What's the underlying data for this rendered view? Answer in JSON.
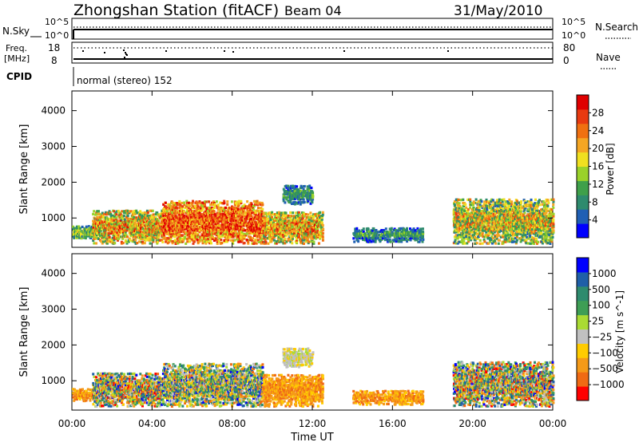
{
  "header": {
    "station": "Zhongshan Station (fitACF)",
    "beam": "Beam 04",
    "date": "31/May/2010"
  },
  "nsky_strip": {
    "left_label": "N.Sky",
    "right_label": "N.Search",
    "left_ticks": [
      "10^5",
      "10^0"
    ],
    "right_ticks": [
      "10^5",
      "10^0"
    ]
  },
  "freq_strip": {
    "left_label_line1": "Freq.",
    "left_label_line2": "[MHz]",
    "right_label": "Nave",
    "left_ticks": [
      "18",
      "8"
    ],
    "right_ticks": [
      "80",
      "0"
    ]
  },
  "cpid": {
    "label": "CPID",
    "text": "normal (stereo) 152"
  },
  "x_axis": {
    "title": "Time UT",
    "ticks": [
      "00:00",
      "04:00",
      "08:00",
      "12:00",
      "16:00",
      "20:00",
      "00:00"
    ],
    "range_hours": [
      0,
      24
    ]
  },
  "colors": {
    "power_scale": [
      "#0000ff",
      "#1f5fb4",
      "#2e8b6e",
      "#3fa04a",
      "#9ad22a",
      "#f0e020",
      "#f5a623",
      "#f07010",
      "#e83a10",
      "#e00000"
    ],
    "velocity_scale": [
      "#ff0000",
      "#f06a14",
      "#f59a18",
      "#ffcc00",
      "#c0c0c0",
      "#aadb33",
      "#3e9e55",
      "#2e8b6e",
      "#1f5fa8",
      "#0000ff"
    ]
  },
  "chart_data": [
    {
      "type": "heatmap",
      "name": "power",
      "ylabel": "Slant Range [km]",
      "yticks": [
        1000,
        2000,
        3000,
        4000
      ],
      "ylim": [
        180,
        4550
      ],
      "xlim": [
        0,
        24
      ],
      "colorbar": {
        "label": "Power [dB]",
        "ticks": [
          "4",
          "8",
          "12",
          "16",
          "20",
          "24",
          "28"
        ],
        "range": [
          0,
          32
        ]
      },
      "clusters": [
        {
          "t": [
            0.0,
            1.0
          ],
          "r": [
            400,
            750
          ],
          "level": "low-mid"
        },
        {
          "t": [
            1.0,
            4.5
          ],
          "r": [
            250,
            1200
          ],
          "level": "mid-high"
        },
        {
          "t": [
            4.5,
            9.5
          ],
          "r": [
            250,
            1450
          ],
          "level": "high"
        },
        {
          "t": [
            9.5,
            12.5
          ],
          "r": [
            250,
            1150
          ],
          "level": "mid-high"
        },
        {
          "t": [
            10.5,
            12.0
          ],
          "r": [
            1350,
            1900
          ],
          "level": "low"
        },
        {
          "t": [
            14.0,
            17.5
          ],
          "r": [
            300,
            700
          ],
          "level": "low"
        },
        {
          "t": [
            19.0,
            24.0
          ],
          "r": [
            250,
            1500
          ],
          "level": "mid"
        }
      ]
    },
    {
      "type": "heatmap",
      "name": "velocity",
      "ylabel": "Slant Range [km]",
      "yticks": [
        1000,
        2000,
        3000,
        4000
      ],
      "ylim": [
        180,
        4550
      ],
      "xlim": [
        0,
        24
      ],
      "colorbar": {
        "label": "Velocity [m s^-1]",
        "ticks": [
          "1000",
          "500",
          "100",
          "25",
          "-25",
          "-100",
          "-500",
          "-1000"
        ]
      },
      "clusters": [
        {
          "t": [
            0.0,
            1.0
          ],
          "r": [
            400,
            750
          ],
          "level": "mid"
        },
        {
          "t": [
            1.0,
            4.5
          ],
          "r": [
            250,
            1200
          ],
          "level": "mixed"
        },
        {
          "t": [
            4.5,
            9.5
          ],
          "r": [
            250,
            1450
          ],
          "level": "mixed-positive"
        },
        {
          "t": [
            9.5,
            12.5
          ],
          "r": [
            250,
            1150
          ],
          "level": "mid"
        },
        {
          "t": [
            10.5,
            12.0
          ],
          "r": [
            1350,
            1900
          ],
          "level": "near-zero"
        },
        {
          "t": [
            14.0,
            17.5
          ],
          "r": [
            300,
            700
          ],
          "level": "negative"
        },
        {
          "t": [
            19.0,
            24.0
          ],
          "r": [
            250,
            1500
          ],
          "level": "mixed"
        }
      ]
    }
  ]
}
